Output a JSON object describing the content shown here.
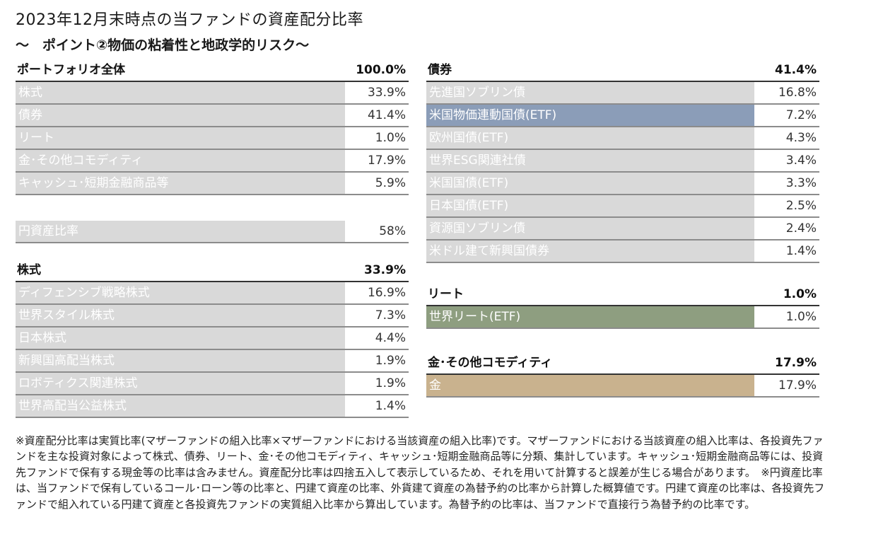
{
  "title": "2023年12月末時点の当ファンドの資産配分比率",
  "subtitle": "～　ポイント②物価の粘着性と地政学的リスク～",
  "portfolio": {
    "header": {
      "label": "ポートフォリオ全体",
      "value": "100.0%"
    },
    "rows": [
      {
        "label": "株式",
        "value": "33.9%"
      },
      {
        "label": "債券",
        "value": "41.4%"
      },
      {
        "label": "リート",
        "value": "1.0%"
      },
      {
        "label": "金･その他コモディティ",
        "value": "17.9%"
      },
      {
        "label": "キャッシュ･短期金融商品等",
        "value": "5.9%"
      }
    ],
    "yen": {
      "label": "円資産比率",
      "value": "58%"
    }
  },
  "equity": {
    "header": {
      "label": "株式",
      "value": "33.9%"
    },
    "rows": [
      {
        "label": "ディフェンシブ戦略株式",
        "value": "16.9%"
      },
      {
        "label": "世界スタイル株式",
        "value": "7.3%"
      },
      {
        "label": "日本株式",
        "value": "4.4%"
      },
      {
        "label": "新興国高配当株式",
        "value": "1.9%"
      },
      {
        "label": "ロボティクス関連株式",
        "value": "1.9%"
      },
      {
        "label": "世界高配当公益株式",
        "value": "1.4%"
      }
    ]
  },
  "bonds": {
    "header": {
      "label": "債券",
      "value": "41.4%"
    },
    "rows": [
      {
        "label": "先進国ソブリン債",
        "value": "16.8%"
      },
      {
        "label": "米国物価連動国債(ETF)",
        "value": "7.2%",
        "highlight": "#8b9db8"
      },
      {
        "label": "欧州国債(ETF)",
        "value": "4.3%"
      },
      {
        "label": "世界ESG関連社債",
        "value": "3.4%"
      },
      {
        "label": "米国国債(ETF)",
        "value": "3.3%"
      },
      {
        "label": "日本国債(ETF)",
        "value": "2.5%"
      },
      {
        "label": "資源国ソブリン債",
        "value": "2.4%"
      },
      {
        "label": "米ドル建て新興国債券",
        "value": "1.4%"
      }
    ]
  },
  "reit": {
    "header": {
      "label": "リート",
      "value": "1.0%"
    },
    "rows": [
      {
        "label": "世界リート(ETF)",
        "value": "1.0%",
        "highlight": "#8e9e80"
      }
    ]
  },
  "commodity": {
    "header": {
      "label": "金･その他コモディティ",
      "value": "17.9%"
    },
    "rows": [
      {
        "label": "金",
        "value": "17.9%",
        "highlight": "#c9b28e"
      }
    ]
  },
  "note": "※資産配分比率は実質比率(マザーファンドの組入比率×マザーファンドにおける当該資産の組入比率)です。マザーファンドにおける当該資産の組入比率は、各投資先ファンドを主な投資対象によって株式、債券、リート、金･その他コモディティ、キャッシュ･短期金融商品等に分類、集計しています。キャッシュ･短期金融商品等には、投資先ファンドで保有する現金等の比率は含みません。資産配分比率は四捨五入して表示しているため、それを用いて計算すると誤差が生じる場合があります。　※円資産比率は、当ファンドで保有しているコール･ローン等の比率と、円建て資産の比率、外貨建て資産の為替予約の比率から計算した概算値です。円建て資産の比率は、各投資先ファンドで組入れている円建て資産と各投資先ファンドの実質組入比率から算出しています。為替予約の比率は、当ファンドで直接行う為替予約の比率です。",
  "colors": {
    "label_bg": "#d9d9d9",
    "bond_highlight": "#8b9db8",
    "reit_highlight": "#8e9e80",
    "gold_highlight": "#c9b28e"
  }
}
